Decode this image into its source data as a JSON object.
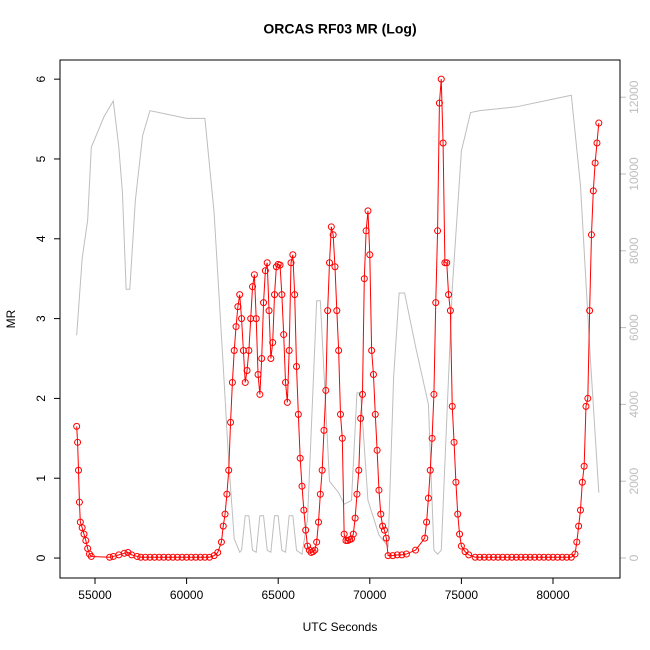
{
  "chart_data": {
    "type": "line",
    "title": "ORCAS RF03 MR (Log)",
    "x_label": "UTC Seconds",
    "y_label": "MR",
    "xlim": [
      53090,
      83657
    ],
    "ylim": [
      -0.25,
      6.24
    ],
    "y2lim": [
      -521,
      12969
    ],
    "xticks": [
      55000,
      60000,
      65000,
      70000,
      75000,
      80000
    ],
    "yticks": [
      0,
      1,
      2,
      3,
      4,
      5,
      6
    ],
    "y2ticks": [
      0,
      2000,
      4000,
      6000,
      8000,
      10000,
      12000
    ],
    "series": [
      {
        "color": "#ff0000",
        "markers": true,
        "x": [
          54000,
          54050,
          54100,
          54150,
          54200,
          54300,
          54400,
          54500,
          54600,
          54700,
          54800,
          55800,
          56000,
          56300,
          56600,
          56800,
          57000,
          57300,
          57500,
          57750,
          58000,
          58250,
          58500,
          58750,
          59000,
          59250,
          59500,
          59750,
          60000,
          60250,
          60500,
          60750,
          61000,
          61250,
          61500,
          61700,
          61900,
          62000,
          62100,
          62200,
          62300,
          62400,
          62500,
          62600,
          62700,
          62800,
          62900,
          63000,
          63100,
          63200,
          63300,
          63400,
          63500,
          63600,
          63700,
          63800,
          63900,
          64000,
          64100,
          64200,
          64300,
          64400,
          64500,
          64600,
          64700,
          64800,
          64900,
          65000,
          65100,
          65200,
          65300,
          65400,
          65500,
          65600,
          65700,
          65800,
          65900,
          66000,
          66100,
          66200,
          66300,
          66400,
          66500,
          66600,
          66700,
          66800,
          66900,
          67000,
          67100,
          67200,
          67300,
          67400,
          67500,
          67600,
          67700,
          67800,
          67900,
          68000,
          68100,
          68200,
          68300,
          68400,
          68500,
          68600,
          68700,
          68800,
          68900,
          69000,
          69100,
          69200,
          69300,
          69400,
          69500,
          69600,
          69700,
          69800,
          69900,
          70000,
          70100,
          70200,
          70300,
          70400,
          70500,
          70600,
          70700,
          70800,
          70900,
          71000,
          71250,
          71500,
          71750,
          72000,
          72500,
          73000,
          73100,
          73200,
          73300,
          73400,
          73500,
          73600,
          73700,
          73800,
          73900,
          74000,
          74100,
          74200,
          74300,
          74400,
          74500,
          74600,
          74700,
          74800,
          74900,
          75000,
          75200,
          75400,
          75750,
          76000,
          76250,
          76500,
          76750,
          77000,
          77250,
          77500,
          77750,
          78000,
          78250,
          78500,
          78750,
          79000,
          79250,
          79500,
          79750,
          80000,
          80250,
          80500,
          80750,
          81000,
          81200,
          81300,
          81400,
          81500,
          81600,
          81700,
          81800,
          81900,
          82000,
          82100,
          82200,
          82300,
          82400,
          82500
        ],
        "values": [
          1.65,
          1.45,
          1.1,
          0.7,
          0.45,
          0.38,
          0.3,
          0.22,
          0.12,
          0.05,
          0.02,
          0.01,
          0.02,
          0.04,
          0.06,
          0.07,
          0.04,
          0.02,
          0.01,
          0.01,
          0.01,
          0.01,
          0.01,
          0.01,
          0.01,
          0.01,
          0.01,
          0.01,
          0.01,
          0.01,
          0.01,
          0.01,
          0.01,
          0.01,
          0.03,
          0.07,
          0.2,
          0.4,
          0.55,
          0.8,
          1.1,
          1.7,
          2.2,
          2.6,
          2.9,
          3.15,
          3.3,
          3.0,
          2.6,
          2.2,
          2.35,
          2.6,
          3.0,
          3.4,
          3.55,
          3.0,
          2.3,
          2.05,
          2.5,
          3.2,
          3.6,
          3.7,
          3.1,
          2.5,
          2.7,
          3.3,
          3.65,
          3.68,
          3.67,
          3.3,
          2.8,
          2.2,
          1.95,
          2.6,
          3.7,
          3.8,
          3.3,
          2.4,
          1.8,
          1.25,
          0.9,
          0.6,
          0.35,
          0.15,
          0.1,
          0.07,
          0.08,
          0.1,
          0.2,
          0.45,
          0.8,
          1.1,
          1.6,
          2.1,
          3.1,
          3.7,
          4.15,
          4.05,
          3.65,
          3.1,
          2.6,
          1.8,
          1.5,
          0.3,
          0.22,
          0.22,
          0.23,
          0.24,
          0.3,
          0.5,
          0.8,
          1.1,
          1.75,
          2.05,
          3.5,
          4.1,
          4.35,
          3.8,
          2.6,
          2.3,
          1.8,
          1.35,
          0.85,
          0.55,
          0.4,
          0.35,
          0.25,
          0.03,
          0.03,
          0.04,
          0.04,
          0.05,
          0.1,
          0.25,
          0.45,
          0.75,
          1.1,
          1.5,
          2.05,
          3.2,
          4.1,
          5.7,
          6.0,
          5.2,
          3.7,
          3.7,
          3.3,
          3.1,
          1.9,
          1.45,
          0.95,
          0.55,
          0.3,
          0.15,
          0.08,
          0.04,
          0.01,
          0.01,
          0.01,
          0.01,
          0.01,
          0.01,
          0.01,
          0.01,
          0.01,
          0.01,
          0.01,
          0.01,
          0.01,
          0.01,
          0.01,
          0.01,
          0.01,
          0.01,
          0.01,
          0.01,
          0.01,
          0.01,
          0.05,
          0.2,
          0.4,
          0.6,
          0.95,
          1.15,
          1.9,
          2.0,
          3.1,
          4.05,
          4.6,
          4.95,
          5.2,
          5.45
        ]
      },
      {
        "color": "#bebebe",
        "axis": "y2",
        "markers": false,
        "x": [
          54000,
          54300,
          54600,
          54800,
          55500,
          56000,
          56300,
          56500,
          56700,
          56900,
          57200,
          57600,
          58000,
          59000,
          60000,
          61000,
          61500,
          62000,
          62300,
          62600,
          62900,
          63000,
          63200,
          63400,
          63600,
          63800,
          64000,
          64200,
          64400,
          64600,
          64800,
          65000,
          65200,
          65400,
          65600,
          65800,
          66000,
          66300,
          66600,
          67100,
          67300,
          67800,
          68300,
          68600,
          69000,
          69300,
          69500,
          69900,
          70500,
          71000,
          71300,
          71600,
          71900,
          72500,
          73200,
          73500,
          73700,
          73900,
          74500,
          75000,
          75500,
          76000,
          78000,
          80000,
          81000,
          81500,
          82000,
          82500
        ],
        "values": [
          5800,
          7800,
          8800,
          10700,
          11500,
          11900,
          10700,
          9500,
          7000,
          7000,
          9300,
          11000,
          11650,
          11550,
          11450,
          11450,
          9000,
          5000,
          2500,
          500,
          150,
          200,
          1100,
          1100,
          200,
          150,
          1100,
          1100,
          200,
          150,
          1100,
          1100,
          200,
          150,
          1100,
          1100,
          200,
          100,
          1000,
          6700,
          6700,
          2000,
          1700,
          1400,
          1500,
          4300,
          4300,
          1500,
          600,
          300,
          4700,
          6900,
          6900,
          5500,
          4000,
          200,
          100,
          200,
          7000,
          10600,
          11600,
          11650,
          11750,
          11950,
          12050,
          9700,
          5500,
          1700
        ]
      }
    ]
  }
}
